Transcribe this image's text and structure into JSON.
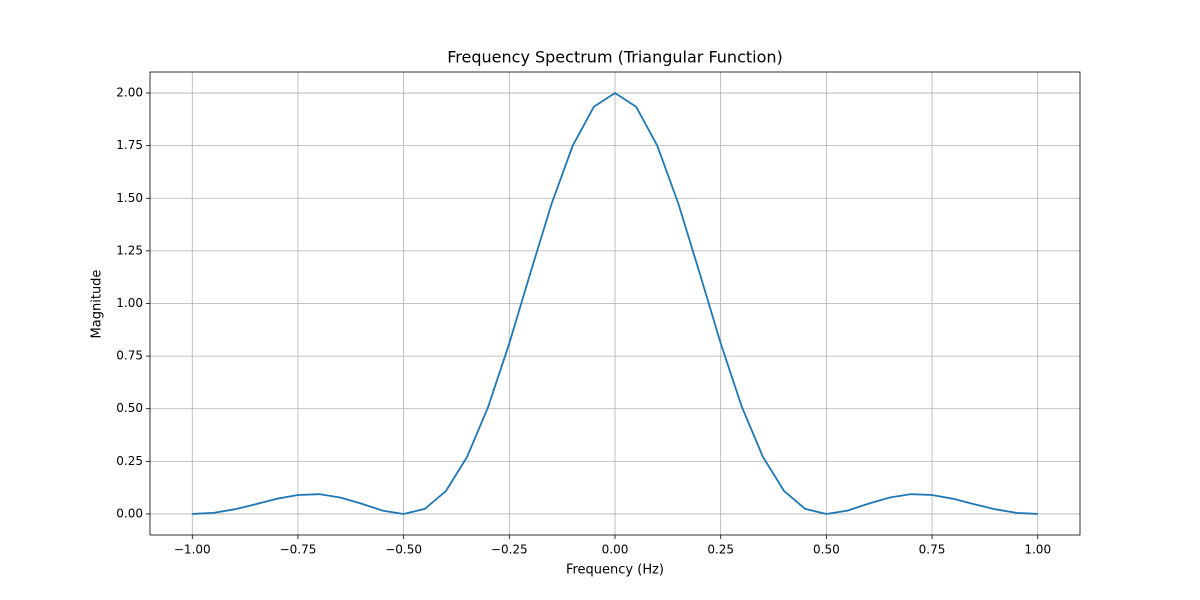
{
  "chart_data": {
    "type": "line",
    "title": "Frequency Spectrum (Triangular Function)",
    "x_label": "Frequency (Hz)",
    "y_label": "Magnitude",
    "x": [
      -1,
      -0.95,
      -0.9,
      -0.85,
      -0.8,
      -0.75,
      -0.7,
      -0.65,
      -0.6,
      -0.55,
      -0.5,
      -0.45,
      -0.4,
      -0.35,
      -0.3,
      -0.25,
      -0.2,
      -0.15,
      -0.1,
      -0.05,
      0,
      0.05,
      0.1,
      0.15,
      0.2,
      0.25,
      0.3,
      0.35,
      0.4,
      0.45,
      0.5,
      0.55,
      0.6,
      0.65,
      0.7,
      0.75,
      0.8,
      0.85,
      0.9,
      0.95,
      1
    ],
    "series": [
      {
        "name": "Magnitude",
        "color": "#1f77b4",
        "values": [
          0,
          0.005,
          0.022,
          0.046,
          0.072,
          0.09,
          0.094,
          0.078,
          0.049,
          0.016,
          0,
          0.024,
          0.109,
          0.271,
          0.509,
          0.811,
          1.146,
          1.474,
          1.75,
          1.935,
          2,
          1.935,
          1.75,
          1.474,
          1.146,
          0.811,
          0.509,
          0.271,
          0.109,
          0.024,
          0,
          0.016,
          0.049,
          0.078,
          0.094,
          0.09,
          0.072,
          0.046,
          0.022,
          0.005,
          0
        ]
      }
    ],
    "xlim": [
      -1.1,
      1.1
    ],
    "ylim": [
      -0.1,
      2.1
    ],
    "xticks": [
      {
        "value": -1,
        "label": "−1.00"
      },
      {
        "value": -0.75,
        "label": "−0.75"
      },
      {
        "value": -0.5,
        "label": "−0.50"
      },
      {
        "value": -0.25,
        "label": "−0.25"
      },
      {
        "value": 0,
        "label": "0.00"
      },
      {
        "value": 0.25,
        "label": "0.25"
      },
      {
        "value": 0.5,
        "label": "0.50"
      },
      {
        "value": 0.75,
        "label": "0.75"
      },
      {
        "value": 1,
        "label": "1.00"
      }
    ],
    "yticks": [
      {
        "value": 0,
        "label": "0.00"
      },
      {
        "value": 0.25,
        "label": "0.25"
      },
      {
        "value": 0.5,
        "label": "0.50"
      },
      {
        "value": 0.75,
        "label": "0.75"
      },
      {
        "value": 1,
        "label": "1.00"
      },
      {
        "value": 1.25,
        "label": "1.25"
      },
      {
        "value": 1.5,
        "label": "1.50"
      },
      {
        "value": 1.75,
        "label": "1.75"
      },
      {
        "value": 2,
        "label": "2.00"
      }
    ],
    "grid": true
  }
}
